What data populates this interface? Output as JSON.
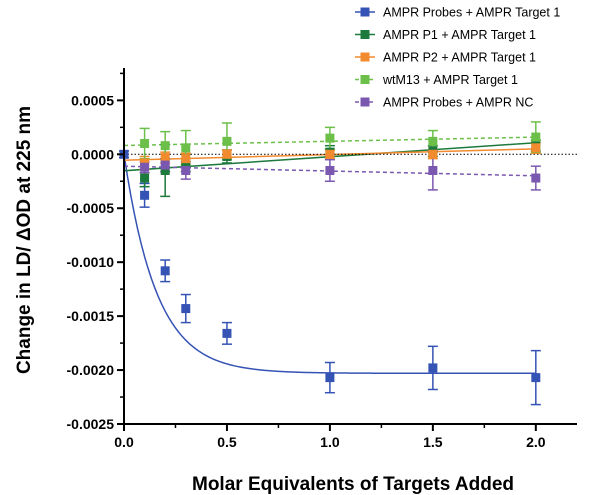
{
  "chart_data": {
    "type": "scatter",
    "xlabel": "Molar Equivalents of Targets Added",
    "ylabel": "Change in LD/ ΔOD at 225 nm",
    "xlim": [
      0.0,
      2.2
    ],
    "ylim": [
      -0.0025,
      0.0008
    ],
    "xticks": [
      0.0,
      0.5,
      1.0,
      1.5,
      2.0
    ],
    "xtick_labels": [
      "0.0",
      "0.5",
      "1.0",
      "1.5",
      "2.0"
    ],
    "yticks": [
      -0.0025,
      -0.002,
      -0.0015,
      -0.001,
      -0.0005,
      0.0,
      0.0005
    ],
    "ytick_labels": [
      "-0.0025",
      "-0.0020",
      "-0.0015",
      "-0.0010",
      "-0.0005",
      "0.0000",
      "0.0005"
    ],
    "zero_line": "dotted",
    "legend_position": "top-right",
    "series": [
      {
        "name": "AMPR Probes + AMPR Target 1",
        "color": "#3553b4",
        "marker": "square",
        "fit": "solid",
        "x": [
          0.0,
          0.1,
          0.2,
          0.3,
          0.5,
          1.0,
          1.5,
          2.0
        ],
        "y": [
          0.0,
          -0.00038,
          -0.00108,
          -0.00143,
          -0.00166,
          -0.00207,
          -0.00198,
          -0.00207
        ],
        "err": [
          3e-05,
          0.00011,
          0.0001,
          0.00013,
          0.0001,
          0.00014,
          0.0002,
          0.00025
        ]
      },
      {
        "name": "AMPR P1 + AMPR Target 1",
        "color": "#1c7a3c",
        "marker": "square",
        "fit": "solid",
        "x": [
          0.1,
          0.2,
          0.3,
          0.5,
          1.0,
          1.5,
          2.0
        ],
        "y": [
          -0.00022,
          -0.00015,
          -8e-05,
          -2e-05,
          2e-05,
          3e-05,
          8e-05
        ],
        "err": [
          8e-05,
          0.00024,
          8e-05,
          6e-05,
          6e-05,
          5e-05,
          5e-05
        ]
      },
      {
        "name": "AMPR P2 + AMPR Target 1",
        "color": "#f28a2e",
        "marker": "square",
        "fit": "solid",
        "x": [
          0.1,
          0.2,
          0.3,
          0.5,
          1.0,
          1.5,
          2.0
        ],
        "y": [
          -8e-05,
          -3e-05,
          -4e-05,
          0.0,
          0.0,
          0.0,
          6e-05
        ],
        "err": [
          6e-05,
          5e-05,
          5e-05,
          4e-05,
          4e-05,
          4e-05,
          5e-05
        ]
      },
      {
        "name": "wtM13 + AMPR Target 1",
        "color": "#6cc04a",
        "marker": "square",
        "fit": "dashed",
        "x": [
          0.1,
          0.2,
          0.3,
          0.5,
          1.0,
          1.5,
          2.0
        ],
        "y": [
          0.0001,
          8e-05,
          6e-05,
          0.00012,
          0.00015,
          0.00012,
          0.00016
        ],
        "err": [
          0.00014,
          0.00013,
          0.00016,
          0.00017,
          0.0001,
          0.0001,
          0.00014
        ]
      },
      {
        "name": "AMPR Probes + AMPR NC",
        "color": "#7b58b0",
        "marker": "square",
        "fit": "dashed",
        "x": [
          0.1,
          0.2,
          0.3,
          1.0,
          1.5,
          2.0
        ],
        "y": [
          -0.00012,
          -0.0001,
          -0.00015,
          -0.00015,
          -0.00015,
          -0.00022
        ],
        "err": [
          5e-05,
          6e-05,
          8e-05,
          0.0001,
          0.00018,
          0.00011
        ]
      }
    ]
  }
}
